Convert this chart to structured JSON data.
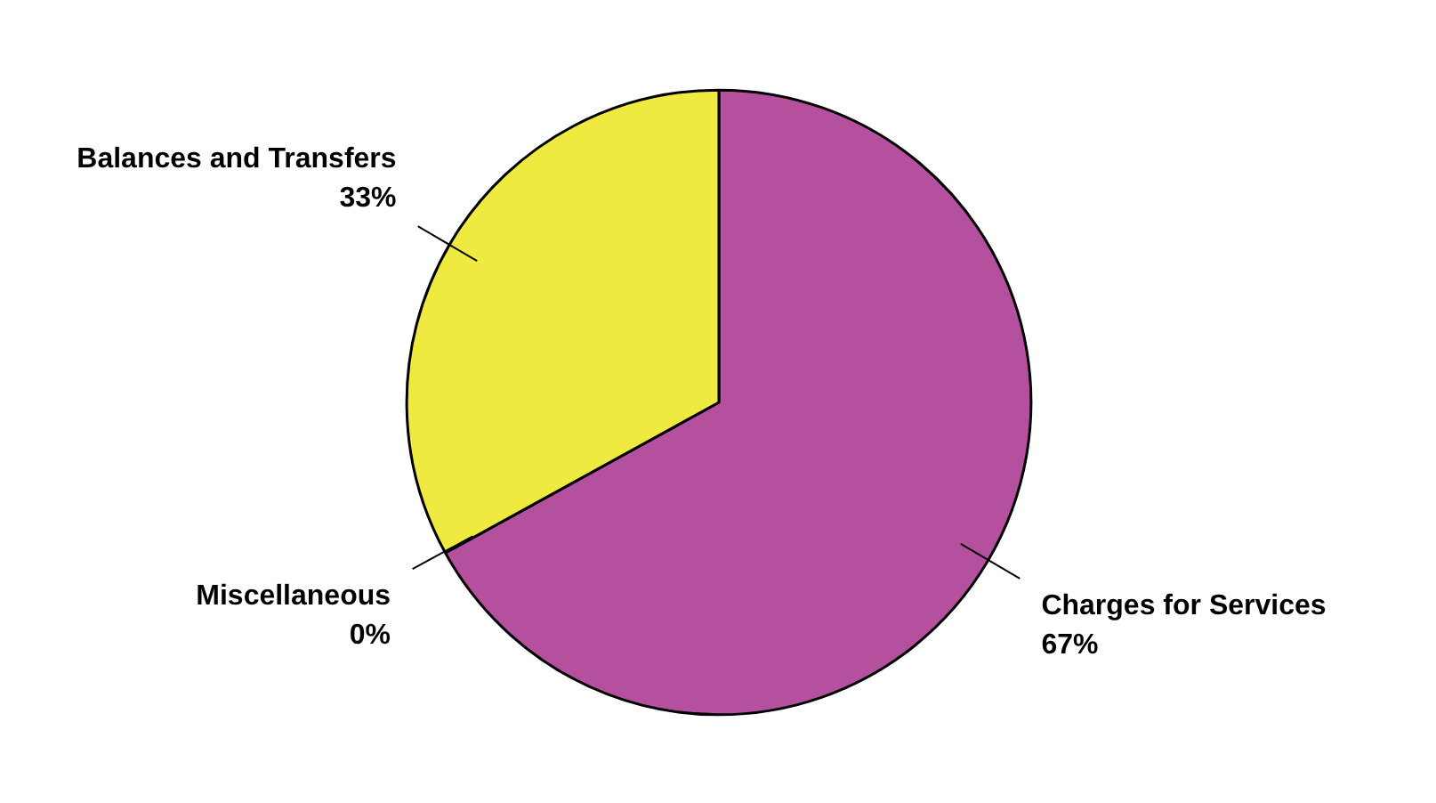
{
  "chart_data": {
    "type": "pie",
    "categories": [
      "Charges for Services",
      "Miscellaneous",
      "Balances and Transfers"
    ],
    "values": [
      67,
      0,
      33
    ],
    "colors": [
      "#b5509e",
      "#7f7f2f",
      "#eeea3f"
    ],
    "value_labels": [
      "67%",
      "0%",
      "33%"
    ]
  }
}
